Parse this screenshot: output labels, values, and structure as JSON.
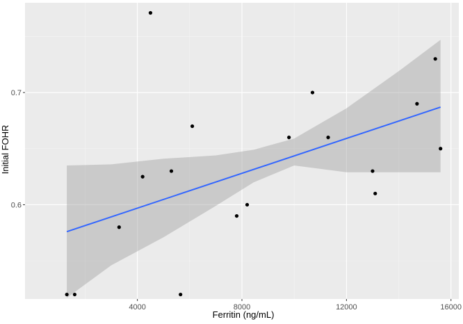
{
  "chart_data": {
    "type": "scatter",
    "title": "",
    "xlabel": "Ferritin (ng/mL)",
    "ylabel": "Initial FOHR",
    "xlim": [
      -300,
      16300
    ],
    "ylim": [
      0.516,
      0.78
    ],
    "x_ticks": [
      4000,
      8000,
      12000,
      16000
    ],
    "x_tick_labels": [
      "4000",
      "8000",
      "12000",
      "16000"
    ],
    "y_ticks": [
      0.6,
      0.7
    ],
    "y_tick_labels": [
      "0.6",
      "0.7"
    ],
    "grid": true,
    "points": [
      {
        "x": 1300,
        "y": 0.52
      },
      {
        "x": 1600,
        "y": 0.52
      },
      {
        "x": 3300,
        "y": 0.58
      },
      {
        "x": 4200,
        "y": 0.625
      },
      {
        "x": 4500,
        "y": 0.771
      },
      {
        "x": 5300,
        "y": 0.63
      },
      {
        "x": 5650,
        "y": 0.52
      },
      {
        "x": 6100,
        "y": 0.67
      },
      {
        "x": 7800,
        "y": 0.59
      },
      {
        "x": 8200,
        "y": 0.6
      },
      {
        "x": 9800,
        "y": 0.66
      },
      {
        "x": 10700,
        "y": 0.7
      },
      {
        "x": 11300,
        "y": 0.66
      },
      {
        "x": 13000,
        "y": 0.63
      },
      {
        "x": 13100,
        "y": 0.61
      },
      {
        "x": 14700,
        "y": 0.69
      },
      {
        "x": 15400,
        "y": 0.73
      },
      {
        "x": 15600,
        "y": 0.65
      }
    ],
    "fit_line": {
      "x": [
        1300,
        15600
      ],
      "y": [
        0.576,
        0.687
      ]
    },
    "confidence_band": {
      "x": [
        1300,
        3000,
        5000,
        7000,
        8450,
        10000,
        12000,
        14000,
        15600
      ],
      "lower": [
        0.517,
        0.546,
        0.571,
        0.599,
        0.62,
        0.635,
        0.629,
        0.629,
        0.629
      ],
      "upper": [
        0.635,
        0.636,
        0.641,
        0.644,
        0.649,
        0.659,
        0.686,
        0.719,
        0.747
      ]
    },
    "colors": {
      "panel": "#ebebeb",
      "grid_major": "#ffffff",
      "grid_minor": "#f5f5f5",
      "ribbon": "#999999",
      "fit_line": "#3366ff",
      "point": "#000000"
    }
  }
}
